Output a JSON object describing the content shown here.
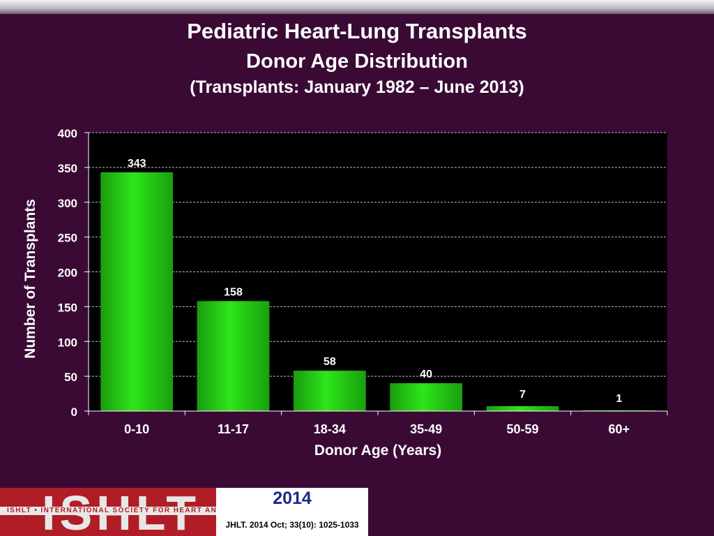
{
  "footer": {
    "logo_text": "ISHLT",
    "society_text": "ISHLT • INTERNATIONAL SOCIETY FOR HEART AND LUNG TRANSPLANTATION",
    "year": "2014",
    "citation": "JHLT. 2014 Oct; 33(10): 1025-1033"
  },
  "colors": {
    "background": "#3a0a35",
    "plot_background": "#000000",
    "bar": "#2ee51a"
  },
  "chart_data": {
    "type": "bar",
    "title": "Pediatric Heart-Lung Transplants",
    "subtitle": "Donor Age Distribution",
    "subtitle2": "(Transplants: January 1982 –  June 2013)",
    "categories": [
      "0-10",
      "11-17",
      "18-34",
      "35-49",
      "50-59",
      "60+"
    ],
    "values": [
      343,
      158,
      58,
      40,
      7,
      1
    ],
    "xlabel": "Donor  Age (Years)",
    "ylabel": "Number of Transplants",
    "ylim": [
      0,
      400
    ],
    "yticks": [
      0,
      50,
      100,
      150,
      200,
      250,
      300,
      350,
      400
    ],
    "grid": true,
    "legend": "none"
  }
}
